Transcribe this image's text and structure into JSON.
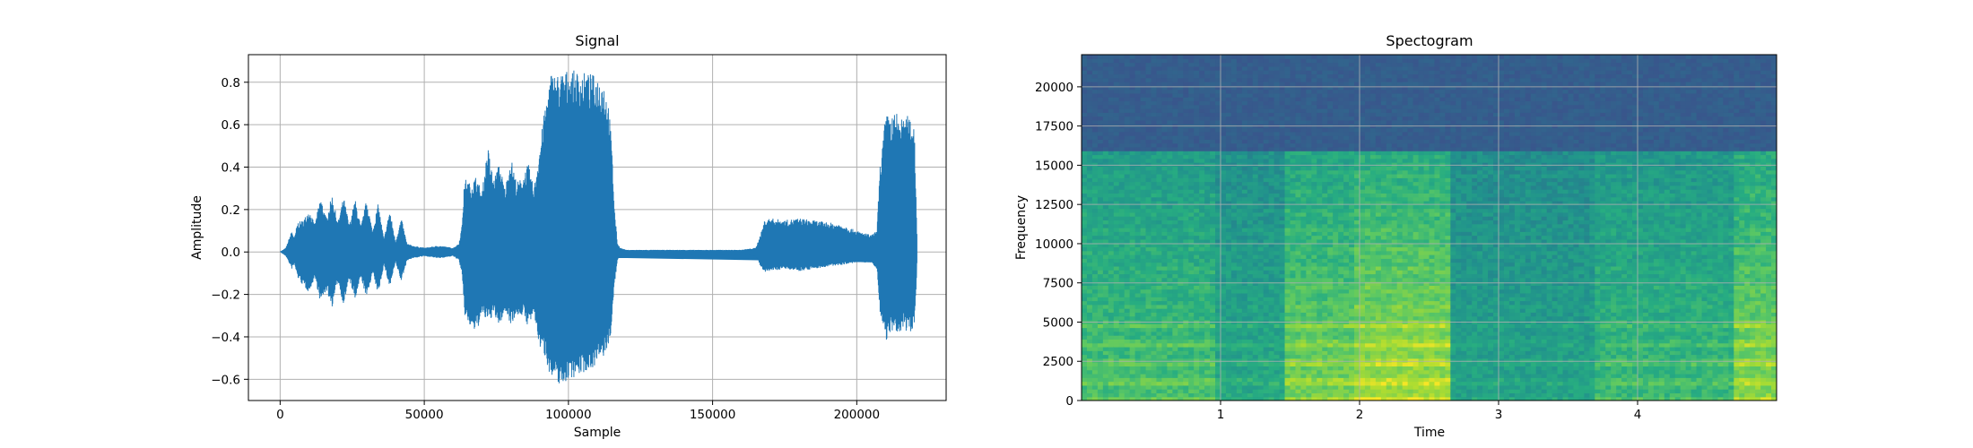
{
  "chart_data": [
    {
      "type": "area",
      "title": "Signal",
      "xlabel": "Sample",
      "ylabel": "Amplitude",
      "xlim": [
        -11000,
        231000
      ],
      "ylim": [
        -0.7,
        0.93
      ],
      "grid": true,
      "color": "#1f77b4",
      "x_ticks": [
        0,
        50000,
        100000,
        150000,
        200000
      ],
      "y_ticks": [
        -0.6,
        -0.4,
        -0.2,
        0.0,
        0.2,
        0.4,
        0.6,
        0.8
      ],
      "envelope": {
        "x": [
          0,
          2000,
          4000,
          5000,
          6000,
          8000,
          10000,
          12000,
          14000,
          16000,
          18000,
          20000,
          22000,
          24000,
          26000,
          28000,
          30000,
          32000,
          34000,
          36000,
          38000,
          40000,
          42000,
          44000,
          46000,
          50000,
          55000,
          60000,
          62000,
          63000,
          64000,
          66000,
          68000,
          70000,
          72000,
          74000,
          76000,
          78000,
          80000,
          82000,
          84000,
          86000,
          88000,
          90000,
          92000,
          94000,
          96000,
          98000,
          100000,
          104000,
          108000,
          112000,
          114000,
          115000,
          116000,
          117000,
          118000,
          120000,
          130000,
          140000,
          150000,
          160000,
          165000,
          167000,
          168000,
          170000,
          175000,
          180000,
          185000,
          190000,
          195000,
          200000,
          205000,
          207000,
          208000,
          210000,
          212000,
          214000,
          216000,
          218000,
          220000,
          220500,
          221000
        ],
        "upper": [
          0.0,
          0.02,
          0.1,
          0.07,
          0.14,
          0.15,
          0.2,
          0.13,
          0.26,
          0.16,
          0.27,
          0.14,
          0.26,
          0.13,
          0.25,
          0.12,
          0.25,
          0.1,
          0.23,
          0.06,
          0.2,
          0.05,
          0.16,
          0.04,
          0.03,
          0.02,
          0.03,
          0.02,
          0.04,
          0.12,
          0.35,
          0.32,
          0.36,
          0.28,
          0.5,
          0.34,
          0.42,
          0.3,
          0.45,
          0.33,
          0.35,
          0.42,
          0.3,
          0.5,
          0.7,
          0.85,
          0.84,
          0.85,
          0.86,
          0.85,
          0.84,
          0.82,
          0.7,
          0.5,
          0.2,
          0.04,
          0.02,
          0.01,
          0.01,
          0.01,
          0.01,
          0.01,
          0.02,
          0.1,
          0.15,
          0.16,
          0.15,
          0.16,
          0.15,
          0.14,
          0.13,
          0.1,
          0.08,
          0.1,
          0.4,
          0.65,
          0.64,
          0.66,
          0.62,
          0.65,
          0.6,
          0.3,
          0.0
        ],
        "lower": [
          0.0,
          -0.02,
          -0.08,
          -0.06,
          -0.12,
          -0.16,
          -0.19,
          -0.12,
          -0.24,
          -0.18,
          -0.26,
          -0.14,
          -0.25,
          -0.13,
          -0.23,
          -0.12,
          -0.22,
          -0.1,
          -0.2,
          -0.06,
          -0.17,
          -0.05,
          -0.14,
          -0.04,
          -0.03,
          -0.02,
          -0.03,
          -0.02,
          -0.04,
          -0.1,
          -0.3,
          -0.36,
          -0.38,
          -0.3,
          -0.33,
          -0.3,
          -0.35,
          -0.28,
          -0.34,
          -0.3,
          -0.3,
          -0.35,
          -0.3,
          -0.45,
          -0.5,
          -0.6,
          -0.62,
          -0.63,
          -0.6,
          -0.58,
          -0.55,
          -0.5,
          -0.45,
          -0.35,
          -0.15,
          -0.04,
          -0.02,
          -0.01,
          -0.01,
          -0.01,
          -0.01,
          -0.01,
          -0.02,
          -0.08,
          -0.1,
          -0.09,
          -0.08,
          -0.09,
          -0.08,
          -0.07,
          -0.06,
          -0.05,
          -0.05,
          -0.08,
          -0.3,
          -0.42,
          -0.38,
          -0.4,
          -0.36,
          -0.38,
          -0.36,
          -0.2,
          0.0
        ]
      }
    },
    {
      "type": "heatmap",
      "title": "Spectogram",
      "xlabel": "Time",
      "ylabel": "Frequency",
      "xlim": [
        0,
        5.0
      ],
      "ylim": [
        0,
        22050
      ],
      "grid": true,
      "colormap": "viridis",
      "x_ticks": [
        1,
        2,
        3,
        4
      ],
      "y_ticks": [
        0,
        2500,
        5000,
        7500,
        10000,
        12500,
        15000,
        17500,
        20000
      ],
      "cutoff_hz": 16000,
      "segments": [
        {
          "t0": 0.0,
          "t1": 0.95,
          "intensity": 0.62
        },
        {
          "t0": 0.95,
          "t1": 1.45,
          "intensity": 0.42
        },
        {
          "t0": 1.45,
          "t1": 1.95,
          "intensity": 0.78
        },
        {
          "t0": 1.95,
          "t1": 2.65,
          "intensity": 0.92
        },
        {
          "t0": 2.65,
          "t1": 3.7,
          "intensity": 0.36
        },
        {
          "t0": 3.7,
          "t1": 4.7,
          "intensity": 0.55
        },
        {
          "t0": 4.7,
          "t1": 5.0,
          "intensity": 0.85
        }
      ]
    }
  ]
}
